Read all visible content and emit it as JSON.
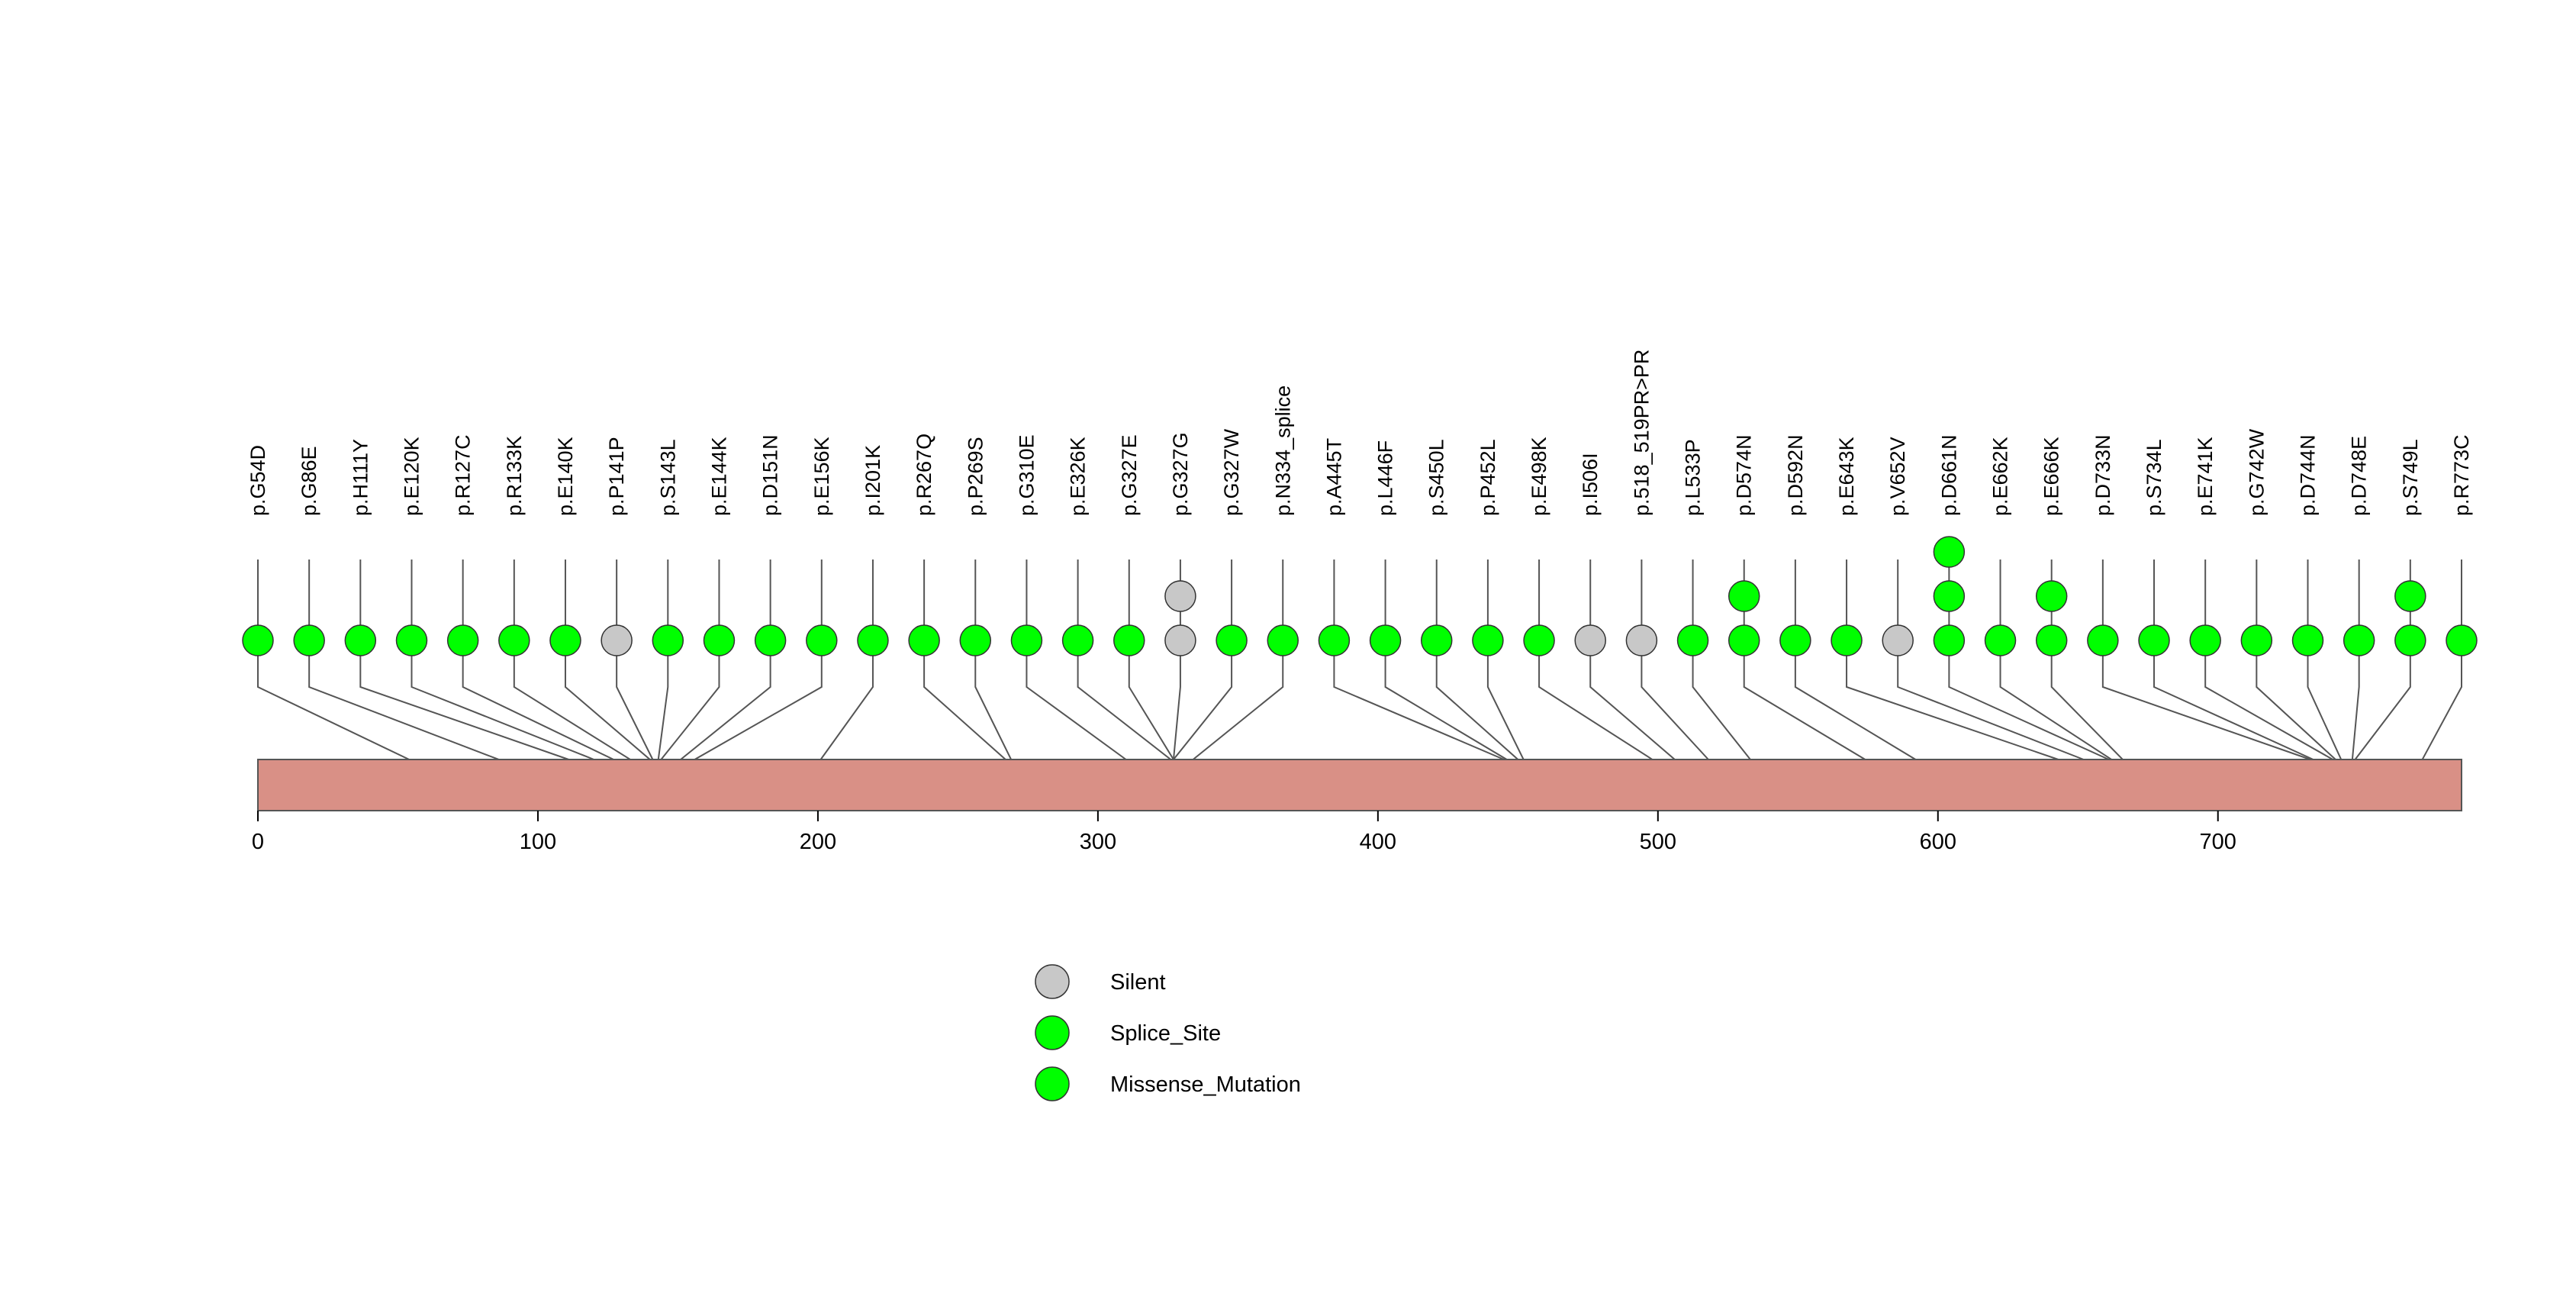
{
  "chart_data": {
    "type": "lollipop",
    "title": "",
    "xlabel": "",
    "ylabel": "",
    "xlim": [
      0,
      787
    ],
    "x_ticks": [
      0,
      100,
      200,
      300,
      400,
      500,
      600,
      700
    ],
    "colors": {
      "Silent": "#c8c8c8",
      "Splice_Site": "#00ff00",
      "Missense_Mutation": "#00ff00",
      "protein_bar": "#d99086",
      "line": "#555555"
    },
    "legend": [
      {
        "label": "Silent",
        "color": "#c8c8c8"
      },
      {
        "label": "Splice_Site",
        "color": "#00ff00"
      },
      {
        "label": "Missense_Mutation",
        "color": "#00ff00"
      }
    ],
    "mutations": [
      {
        "label": "p.G54D",
        "position": 54,
        "stack": [
          "Missense_Mutation"
        ]
      },
      {
        "label": "p.G86E",
        "position": 86,
        "stack": [
          "Missense_Mutation"
        ]
      },
      {
        "label": "p.H111Y",
        "position": 111,
        "stack": [
          "Missense_Mutation"
        ]
      },
      {
        "label": "p.E120K",
        "position": 120,
        "stack": [
          "Missense_Mutation"
        ]
      },
      {
        "label": "p.R127C",
        "position": 127,
        "stack": [
          "Missense_Mutation"
        ]
      },
      {
        "label": "p.R133K",
        "position": 133,
        "stack": [
          "Missense_Mutation"
        ]
      },
      {
        "label": "p.E140K",
        "position": 140,
        "stack": [
          "Missense_Mutation"
        ]
      },
      {
        "label": "p.P141P",
        "position": 141,
        "stack": [
          "Silent"
        ]
      },
      {
        "label": "p.S143L",
        "position": 143,
        "stack": [
          "Missense_Mutation"
        ]
      },
      {
        "label": "p.E144K",
        "position": 144,
        "stack": [
          "Missense_Mutation"
        ]
      },
      {
        "label": "p.D151N",
        "position": 151,
        "stack": [
          "Missense_Mutation"
        ]
      },
      {
        "label": "p.E156K",
        "position": 156,
        "stack": [
          "Missense_Mutation"
        ]
      },
      {
        "label": "p.I201K",
        "position": 201,
        "stack": [
          "Missense_Mutation"
        ]
      },
      {
        "label": "p.R267Q",
        "position": 267,
        "stack": [
          "Missense_Mutation"
        ]
      },
      {
        "label": "p.P269S",
        "position": 269,
        "stack": [
          "Missense_Mutation"
        ]
      },
      {
        "label": "p.G310E",
        "position": 310,
        "stack": [
          "Missense_Mutation"
        ]
      },
      {
        "label": "p.E326K",
        "position": 326,
        "stack": [
          "Missense_Mutation"
        ]
      },
      {
        "label": "p.G327E",
        "position": 327,
        "stack": [
          "Missense_Mutation"
        ]
      },
      {
        "label": "p.G327G",
        "position": 327,
        "stack": [
          "Silent",
          "Silent"
        ]
      },
      {
        "label": "p.G327W",
        "position": 327,
        "stack": [
          "Missense_Mutation"
        ]
      },
      {
        "label": "p.N334_splice",
        "position": 334,
        "stack": [
          "Splice_Site"
        ]
      },
      {
        "label": "p.A445T",
        "position": 445,
        "stack": [
          "Missense_Mutation"
        ]
      },
      {
        "label": "p.L446F",
        "position": 446,
        "stack": [
          "Missense_Mutation"
        ]
      },
      {
        "label": "p.S450L",
        "position": 450,
        "stack": [
          "Missense_Mutation"
        ]
      },
      {
        "label": "p.P452L",
        "position": 452,
        "stack": [
          "Missense_Mutation"
        ]
      },
      {
        "label": "p.E498K",
        "position": 498,
        "stack": [
          "Missense_Mutation"
        ]
      },
      {
        "label": "p.I506I",
        "position": 506,
        "stack": [
          "Silent"
        ]
      },
      {
        "label": "p.518_519PR>PR",
        "position": 518,
        "stack": [
          "Silent"
        ]
      },
      {
        "label": "p.L533P",
        "position": 533,
        "stack": [
          "Missense_Mutation"
        ]
      },
      {
        "label": "p.D574N",
        "position": 574,
        "stack": [
          "Missense_Mutation",
          "Missense_Mutation"
        ]
      },
      {
        "label": "p.D592N",
        "position": 592,
        "stack": [
          "Missense_Mutation"
        ]
      },
      {
        "label": "p.E643K",
        "position": 643,
        "stack": [
          "Missense_Mutation"
        ]
      },
      {
        "label": "p.V652V",
        "position": 652,
        "stack": [
          "Silent"
        ]
      },
      {
        "label": "p.D661N",
        "position": 661,
        "stack": [
          "Missense_Mutation",
          "Missense_Mutation",
          "Missense_Mutation"
        ]
      },
      {
        "label": "p.E662K",
        "position": 662,
        "stack": [
          "Missense_Mutation"
        ]
      },
      {
        "label": "p.E666K",
        "position": 666,
        "stack": [
          "Missense_Mutation",
          "Missense_Mutation"
        ]
      },
      {
        "label": "p.D733N",
        "position": 733,
        "stack": [
          "Missense_Mutation"
        ]
      },
      {
        "label": "p.S734L",
        "position": 734,
        "stack": [
          "Missense_Mutation"
        ]
      },
      {
        "label": "p.E741K",
        "position": 741,
        "stack": [
          "Missense_Mutation"
        ]
      },
      {
        "label": "p.G742W",
        "position": 742,
        "stack": [
          "Missense_Mutation"
        ]
      },
      {
        "label": "p.D744N",
        "position": 744,
        "stack": [
          "Missense_Mutation"
        ]
      },
      {
        "label": "p.D748E",
        "position": 748,
        "stack": [
          "Missense_Mutation"
        ]
      },
      {
        "label": "p.S749L",
        "position": 749,
        "stack": [
          "Missense_Mutation",
          "Missense_Mutation"
        ]
      },
      {
        "label": "p.R773C",
        "position": 773,
        "stack": [
          "Missense_Mutation"
        ]
      }
    ]
  }
}
